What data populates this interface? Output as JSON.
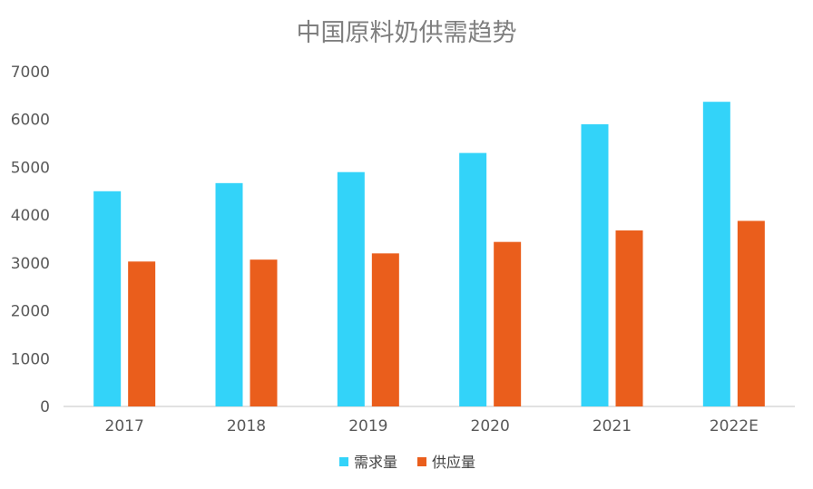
{
  "chart_data": {
    "type": "bar",
    "title": "中国原料奶供需趋势",
    "xlabel": "",
    "ylabel": "",
    "categories": [
      "2017",
      "2018",
      "2019",
      "2020",
      "2021",
      "2022E"
    ],
    "series": [
      {
        "name": "需求量",
        "color": "#33d3f9",
        "values": [
          4500,
          4670,
          4900,
          5300,
          5900,
          6370
        ]
      },
      {
        "name": "供应量",
        "color": "#ea5e1c",
        "values": [
          3030,
          3070,
          3200,
          3440,
          3680,
          3880
        ]
      }
    ],
    "ylim": [
      0,
      7000
    ],
    "yticks": [
      "0",
      "1000",
      "2000",
      "3000",
      "4000",
      "5000",
      "6000",
      "7000"
    ],
    "grid": false,
    "legend_position": "bottom"
  }
}
